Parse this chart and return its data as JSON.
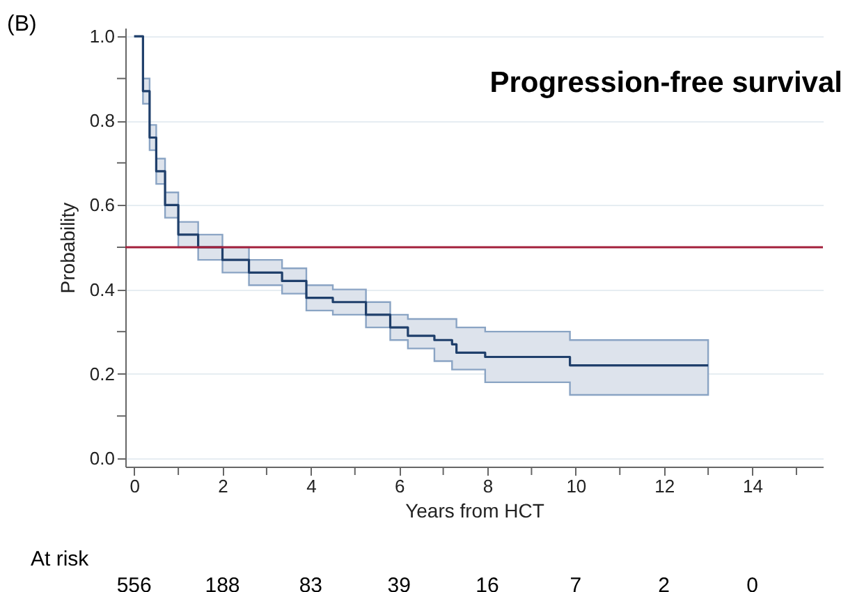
{
  "chart_data": {
    "type": "step",
    "title": "Progression-free survival",
    "xlabel": "Years from HCT",
    "ylabel": "Probability",
    "annotations": [
      "(B)",
      "At risk",
      "556",
      "188",
      "83",
      "39",
      "16",
      "7",
      "2",
      "0"
    ],
    "xlim": [
      -0.2,
      15.6
    ],
    "ylim": [
      -0.02,
      1.02
    ],
    "xticks": [
      {
        "value": 0,
        "label": "0"
      },
      {
        "value": 1,
        "label": null
      },
      {
        "value": 2,
        "label": "2"
      },
      {
        "value": 3,
        "label": null
      },
      {
        "value": 4,
        "label": "4"
      },
      {
        "value": 5,
        "label": null
      },
      {
        "value": 6,
        "label": "6"
      },
      {
        "value": 7,
        "label": null
      },
      {
        "value": 8,
        "label": "8"
      },
      {
        "value": 9,
        "label": null
      },
      {
        "value": 10,
        "label": "10"
      },
      {
        "value": 11,
        "label": null
      },
      {
        "value": 12,
        "label": "12"
      },
      {
        "value": 13,
        "label": null
      },
      {
        "value": 14,
        "label": "14"
      },
      {
        "value": 15,
        "label": null
      }
    ],
    "yticks": [
      {
        "value": 0,
        "label": "0.0"
      },
      {
        "value": 0.1,
        "label": null
      },
      {
        "value": 0.2,
        "label": "0.2"
      },
      {
        "value": 0.3,
        "label": null
      },
      {
        "value": 0.4,
        "label": "0.4"
      },
      {
        "value": 0.5,
        "label": null
      },
      {
        "value": 0.6,
        "label": "0.6"
      },
      {
        "value": 0.7,
        "label": null
      },
      {
        "value": 0.8,
        "label": "0.8"
      },
      {
        "value": 0.9,
        "label": null
      },
      {
        "value": 1,
        "label": "1.0"
      }
    ],
    "grid": "y",
    "ref_lines": [
      {
        "axis": "y",
        "value": 0.5,
        "color": "#a3203c"
      }
    ],
    "series": [
      {
        "color": "#1f3f6b",
        "x": [
          0,
          0.2,
          0.35,
          0.5,
          0.7,
          1.0,
          1.45,
          2.0,
          2.6,
          3.35,
          3.9,
          4.5,
          5.25,
          5.8,
          6.2,
          6.8,
          7.2,
          7.3,
          7.95,
          9.87,
          13.0
        ],
        "values": [
          1.0,
          0.87,
          0.76,
          0.68,
          0.6,
          0.53,
          0.5,
          0.47,
          0.44,
          0.42,
          0.38,
          0.37,
          0.34,
          0.31,
          0.29,
          0.28,
          0.27,
          0.25,
          0.24,
          0.22,
          0.22
        ],
        "upper": [
          1.0,
          0.9,
          0.79,
          0.71,
          0.63,
          0.56,
          0.53,
          0.5,
          0.47,
          0.45,
          0.41,
          0.4,
          0.37,
          0.34,
          0.33,
          0.33,
          0.33,
          0.31,
          0.3,
          0.28,
          0.28
        ],
        "lower": [
          1.0,
          0.84,
          0.73,
          0.65,
          0.57,
          0.5,
          0.47,
          0.44,
          0.41,
          0.39,
          0.35,
          0.34,
          0.31,
          0.28,
          0.26,
          0.23,
          0.21,
          0.21,
          0.18,
          0.15,
          0.15
        ]
      }
    ]
  }
}
